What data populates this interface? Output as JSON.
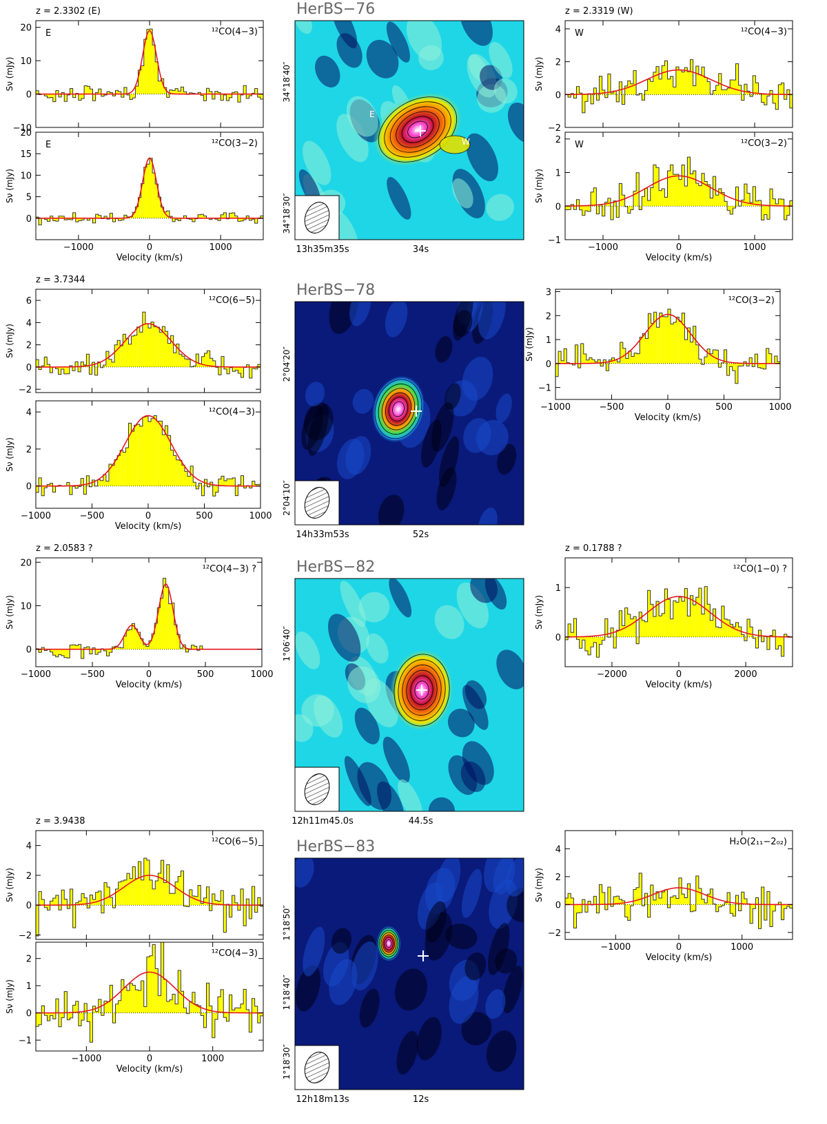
{
  "figure": {
    "sources": [
      {
        "name": "HerBS−76",
        "map_ra_ticks": [
          "13h35m35s",
          "34s"
        ],
        "map_dec_ticks": [
          "34°18′40″",
          "34°18′30″"
        ],
        "map_labels": [
          "E",
          "W"
        ]
      },
      {
        "name": "HerBS−78",
        "map_ra_ticks": [
          "14h33m53s",
          "52s"
        ],
        "map_dec_ticks": [
          "2°04′20″",
          "2°04′10″"
        ],
        "map_labels": []
      },
      {
        "name": "HerBS−82",
        "map_ra_ticks": [
          "12h11m45.0s",
          "44.5s"
        ],
        "map_dec_ticks": [
          "1°06′40″"
        ],
        "map_labels": []
      },
      {
        "name": "HerBS−83",
        "map_ra_ticks": [
          "12h18m13s",
          "12s"
        ],
        "map_dec_ticks": [
          "1°18′50″",
          "1°18′40″",
          "1°18′30″"
        ],
        "map_labels": []
      }
    ]
  },
  "colors": {
    "spectrum_fill": "#ffff00",
    "fit_line": "#e8141c",
    "map_bg_light": "#1fd6e6",
    "map_bg_dark": "#0a1a7a"
  },
  "chart_data": [
    {
      "id": "s76-E-43",
      "type": "bar",
      "redshift_label": "z = 2.3302 (E)",
      "line": "¹²CO(4−3)",
      "corner": "E",
      "xlabel": "",
      "ylabel": "Sν (mJy)",
      "xlim": [
        -1600,
        1600
      ],
      "ylim": [
        -10,
        22
      ],
      "xticks": [
        -1000,
        0,
        1000
      ],
      "yticks": [
        -10,
        0,
        10,
        20
      ],
      "peak": 19,
      "fwhm": 230,
      "noise": 2.2
    },
    {
      "id": "s76-E-32",
      "type": "bar",
      "line": "¹²CO(3−2)",
      "corner": "E",
      "xlabel": "Velocity (km/s)",
      "ylabel": "Sν (mJy)",
      "xlim": [
        -1600,
        1600
      ],
      "ylim": [
        -5,
        20
      ],
      "xticks": [
        -1000,
        0,
        1000
      ],
      "yticks": [
        0,
        5,
        10,
        15,
        20
      ],
      "peak": 14,
      "fwhm": 230,
      "noise": 1.2
    },
    {
      "id": "s76-W-43",
      "type": "bar",
      "redshift_label": "z = 2.3319 (W)",
      "line": "¹²CO(4−3)",
      "corner": "W",
      "xlabel": "",
      "ylabel": "Sν (mJy)",
      "xlim": [
        -1500,
        1500
      ],
      "ylim": [
        -2,
        4.5
      ],
      "xticks": [
        -1000,
        0,
        1000
      ],
      "yticks": [
        -2,
        0,
        2,
        4
      ],
      "peak": 1.5,
      "fwhm": 1000,
      "noise": 1.0
    },
    {
      "id": "s76-W-32",
      "type": "bar",
      "line": "¹²CO(3−2)",
      "corner": "W",
      "xlabel": "Velocity (km/s)",
      "ylabel": "Sν (mJy)",
      "xlim": [
        -1500,
        1500
      ],
      "ylim": [
        -1,
        2.2
      ],
      "xticks": [
        -1000,
        0,
        1000
      ],
      "yticks": [
        -1,
        0,
        1,
        2
      ],
      "peak": 0.9,
      "fwhm": 1000,
      "noise": 0.5
    },
    {
      "id": "s78-65",
      "type": "bar",
      "redshift_label": "z = 3.7344",
      "line": "¹²CO(6−5)",
      "xlabel": "",
      "ylabel": "Sν (mJy)",
      "xlim": [
        -1000,
        1000
      ],
      "ylim": [
        -2.3,
        7
      ],
      "xticks": [
        -1000,
        -500,
        0,
        500,
        1000
      ],
      "yticks": [
        -2,
        0,
        2,
        4,
        6
      ],
      "peak": 3.9,
      "fwhm": 480,
      "noise": 0.9
    },
    {
      "id": "s78-43",
      "type": "bar",
      "line": "¹²CO(4−3)",
      "xlabel": "Velocity (km/s)",
      "ylabel": "Sν (mJy)",
      "xlim": [
        -1000,
        1000
      ],
      "ylim": [
        -1.2,
        4.6
      ],
      "xticks": [
        -1000,
        -500,
        0,
        500,
        1000
      ],
      "yticks": [
        0,
        2,
        4
      ],
      "peak": 3.8,
      "fwhm": 480,
      "noise": 0.5
    },
    {
      "id": "s78-32",
      "type": "bar",
      "line": "¹²CO(3−2)",
      "xlabel": "Velocity (km/s)",
      "ylabel": "Sν (mJy)",
      "xlim": [
        -1000,
        1000
      ],
      "ylim": [
        -1.5,
        3.1
      ],
      "xticks": [
        -1000,
        -500,
        0,
        500,
        1000
      ],
      "yticks": [
        -1,
        0,
        1,
        2,
        3
      ],
      "peak": 2.05,
      "fwhm": 480,
      "noise": 0.6
    },
    {
      "id": "s82-43",
      "type": "bar",
      "redshift_label": "z = 2.0583 ?",
      "line": "¹²CO(4−3) ?",
      "xlabel": "Velocity (km/s)",
      "ylabel": "Sν (mJy)",
      "xlim": [
        -1000,
        1000
      ],
      "ylim": [
        -4,
        21
      ],
      "xticks": [
        -1000,
        -500,
        0,
        500,
        1000
      ],
      "yticks": [
        0,
        10,
        20
      ],
      "peak": 15,
      "center": 150,
      "fwhm": 150,
      "peak2": 5.5,
      "center2": -150,
      "noise": 1.8,
      "data_xmax": 480
    },
    {
      "id": "s82-10",
      "type": "bar",
      "redshift_label": "z = 0.1788 ?",
      "line": "¹²CO(1−0) ?",
      "xlabel": "Velocity (km/s)",
      "ylabel": "Sν (mJy)",
      "xlim": [
        -3400,
        3400
      ],
      "ylim": [
        -0.6,
        1.6
      ],
      "xticks": [
        -2000,
        0,
        2000
      ],
      "yticks": [
        0,
        1
      ],
      "peak": 0.82,
      "fwhm": 2200,
      "noise": 0.35
    },
    {
      "id": "s83-65",
      "type": "bar",
      "redshift_label": "z = 3.9438",
      "line": "¹²CO(6−5)",
      "xlabel": "",
      "ylabel": "Sν (mJy)",
      "xlim": [
        -1800,
        1800
      ],
      "ylim": [
        -2.3,
        5
      ],
      "xticks": [
        -1000,
        0,
        1000
      ],
      "yticks": [
        -2,
        0,
        2,
        4
      ],
      "peak": 2.0,
      "fwhm": 950,
      "noise": 1.3
    },
    {
      "id": "s83-43",
      "type": "bar",
      "line": "¹²CO(4−3)",
      "xlabel": "Velocity (km/s)",
      "ylabel": "Sν (mJy)",
      "xlim": [
        -1800,
        1800
      ],
      "ylim": [
        -1.4,
        2.6
      ],
      "xticks": [
        -1000,
        0,
        1000
      ],
      "yticks": [
        -1,
        0,
        1,
        2
      ],
      "peak": 1.5,
      "fwhm": 950,
      "noise": 0.8
    },
    {
      "id": "s83-h2o",
      "type": "bar",
      "line": "H₂O(2₁₁−2₀₂)",
      "xlabel": "Velocity (km/s)",
      "ylabel": "Sν (mJy)",
      "xlim": [
        -1800,
        1800
      ],
      "ylim": [
        -2.5,
        5.3
      ],
      "xticks": [
        -1000,
        0,
        1000
      ],
      "yticks": [
        -2,
        0,
        2,
        4
      ],
      "peak": 1.2,
      "fwhm": 950,
      "noise": 1.3
    }
  ]
}
